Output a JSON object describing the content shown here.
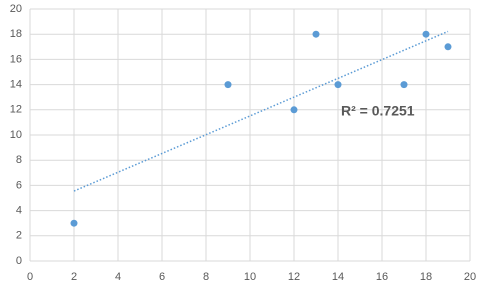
{
  "chart_data": {
    "type": "scatter",
    "x": [
      2,
      9,
      12,
      13,
      14,
      17,
      18,
      19
    ],
    "values": [
      3,
      14,
      12,
      18,
      14,
      14,
      18,
      17
    ],
    "color": "#5b9bd5",
    "xlim": [
      0,
      20
    ],
    "xticks": [
      0,
      2,
      4,
      6,
      8,
      10,
      12,
      14,
      16,
      18,
      20
    ],
    "ylim": [
      0,
      20
    ],
    "yticks": [
      0,
      2,
      4,
      6,
      8,
      10,
      12,
      14,
      16,
      18,
      20
    ],
    "grid": true,
    "trendline": "linear",
    "annotation": "R² = 0.7251"
  }
}
